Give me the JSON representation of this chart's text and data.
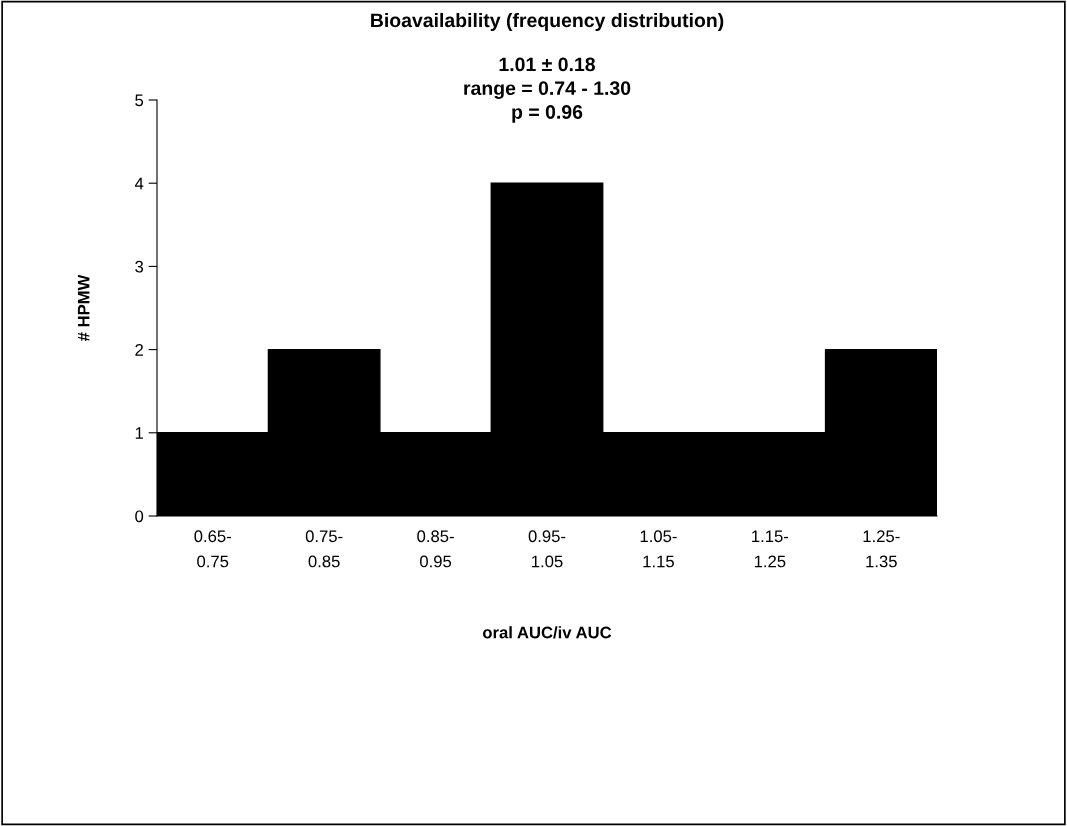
{
  "chart_data": {
    "type": "bar",
    "title": "Bioavailability (frequency distribution)",
    "subtitle": "1.01 ± 0.18\nrange = 0.74 - 1.30\np = 0.96",
    "categories": [
      "0.65-0.75",
      "0.75-0.85",
      "0.85-0.95",
      "0.95-1.05",
      "1.05-1.15",
      "1.15-1.25",
      "1.25-1.35"
    ],
    "values": [
      1,
      2,
      1,
      4,
      1,
      1,
      2
    ],
    "color": "#000000",
    "xlabel": "oral AUC/iv AUC",
    "ylabel": "# HPMW",
    "ylim": [
      0,
      5
    ],
    "yticks": [
      0,
      1,
      2,
      3,
      4,
      5
    ],
    "grid": false,
    "legend": false
  }
}
